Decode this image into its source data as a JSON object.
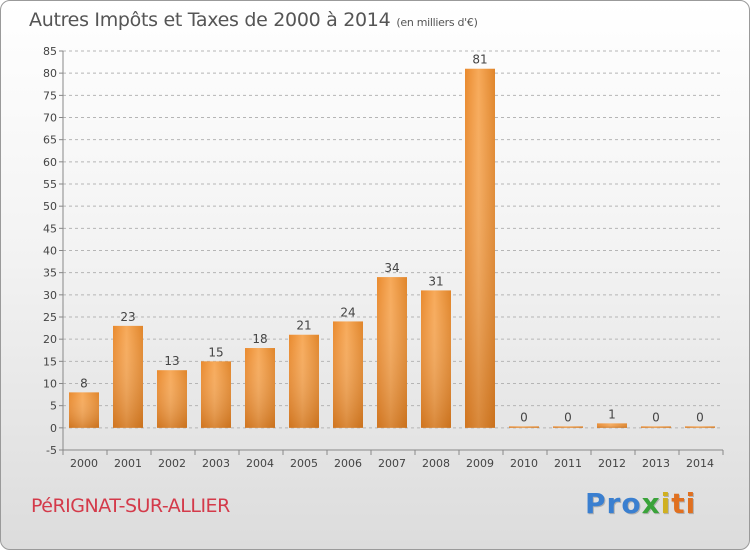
{
  "header": {
    "title": "Autres Impôts et Taxes de 2000 à 2014",
    "unit": "(en milliers d'€)"
  },
  "footer": {
    "town": "PéRIGNAT-SUR-ALLIER",
    "logo": "Proxiti",
    "logo_colors": [
      "#3a7fd0",
      "#3a7fd0",
      "#3a7fd0",
      "#3aa33a",
      "#d0b020",
      "#e07020",
      "#e07020"
    ]
  },
  "chart_data": {
    "type": "bar",
    "title": "Autres Impôts et Taxes de 2000 à 2014",
    "subtitle": "(en milliers d'€)",
    "categories": [
      "2000",
      "2001",
      "2002",
      "2003",
      "2004",
      "2005",
      "2006",
      "2007",
      "2008",
      "2009",
      "2010",
      "2011",
      "2012",
      "2013",
      "2014"
    ],
    "values": [
      8,
      23,
      13,
      15,
      18,
      21,
      24,
      34,
      31,
      81,
      0,
      0,
      1,
      0,
      0
    ],
    "ylim": [
      -5,
      85
    ],
    "yticks": [
      -5,
      0,
      5,
      10,
      15,
      20,
      25,
      30,
      35,
      40,
      45,
      50,
      55,
      60,
      65,
      70,
      75,
      80,
      85
    ],
    "grid": "horizontal dashed",
    "bar_color": "#f0a050",
    "data_labels": true
  }
}
